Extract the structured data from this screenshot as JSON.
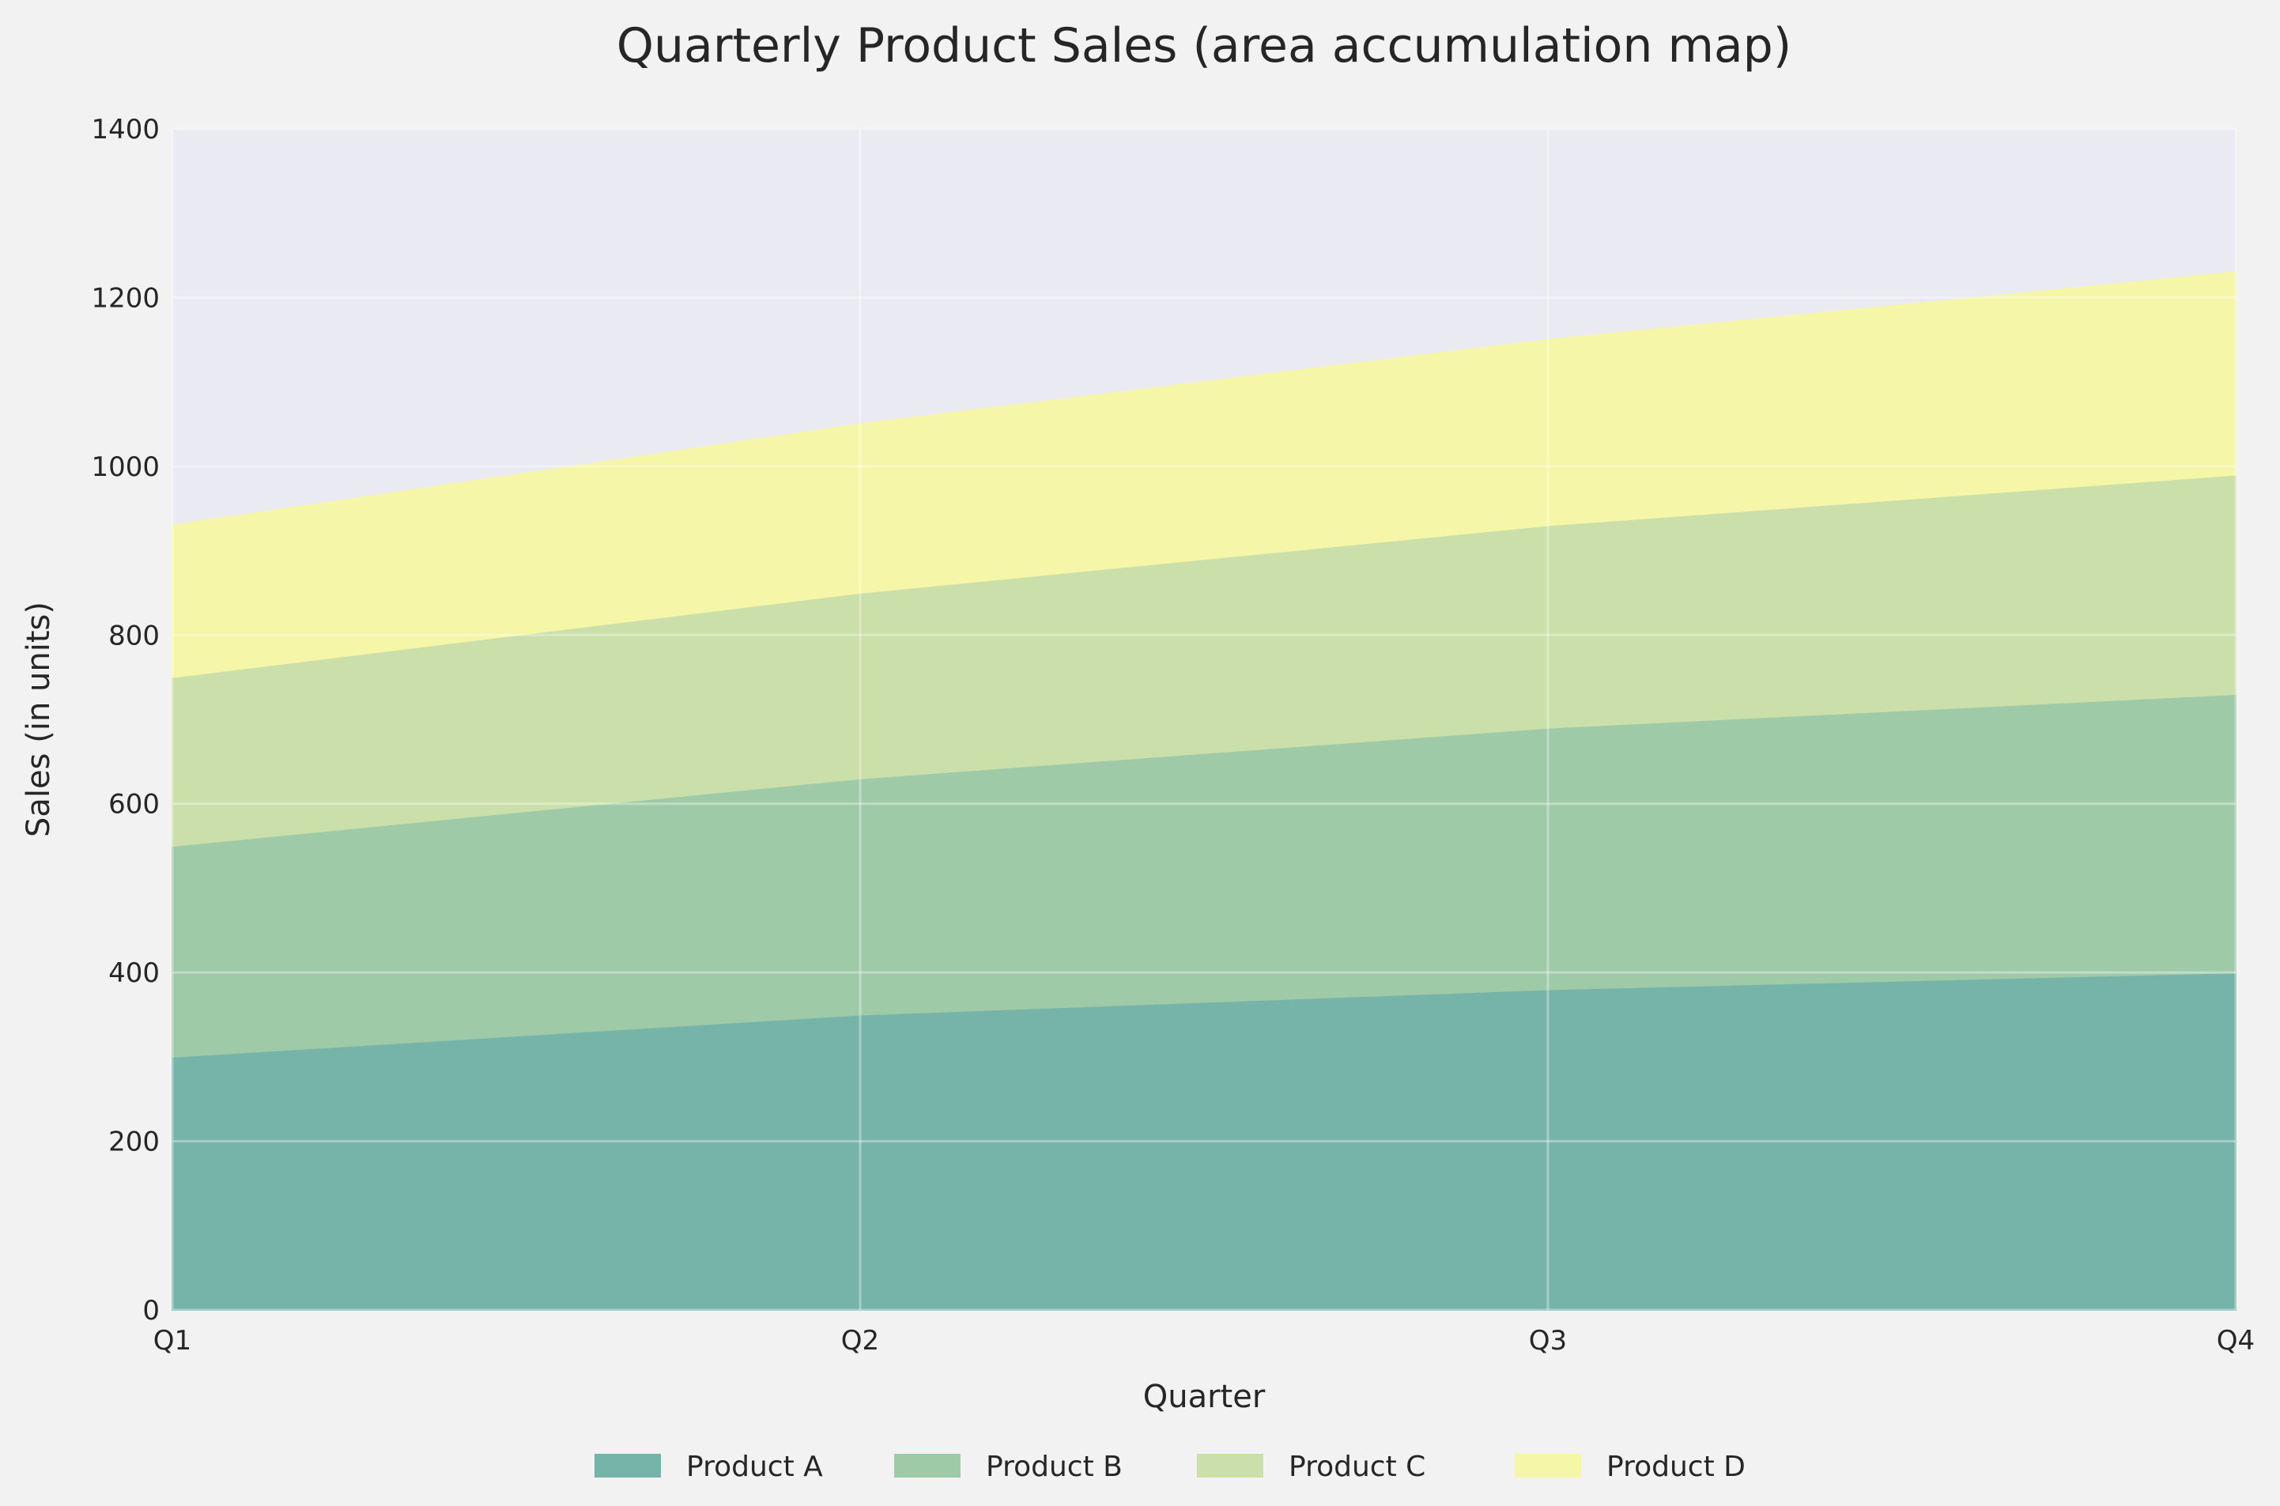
{
  "chart_data": {
    "type": "area",
    "stacked": true,
    "title": "Quarterly Product Sales (area accumulation map)",
    "xlabel": "Quarter",
    "ylabel": "Sales (in units)",
    "categories": [
      "Q1",
      "Q2",
      "Q3",
      "Q4"
    ],
    "ylim": [
      0,
      1400
    ],
    "yticks": [
      0,
      200,
      400,
      600,
      800,
      1000,
      1200,
      1400
    ],
    "grid": true,
    "legend_position": "bottom-center",
    "series": [
      {
        "name": "Product A",
        "values": [
          300,
          350,
          380,
          400
        ],
        "color": "#76b4aa"
      },
      {
        "name": "Product B",
        "values": [
          250,
          280,
          310,
          330
        ],
        "color": "#9fcaa8"
      },
      {
        "name": "Product C",
        "values": [
          200,
          220,
          240,
          260
        ],
        "color": "#cbdfaa"
      },
      {
        "name": "Product D",
        "values": [
          180,
          200,
          220,
          240
        ],
        "color": "#f6f6a8"
      }
    ]
  },
  "colors": {
    "plot_background": "#eaeaf2",
    "figure_background": "#f2f2f2"
  }
}
